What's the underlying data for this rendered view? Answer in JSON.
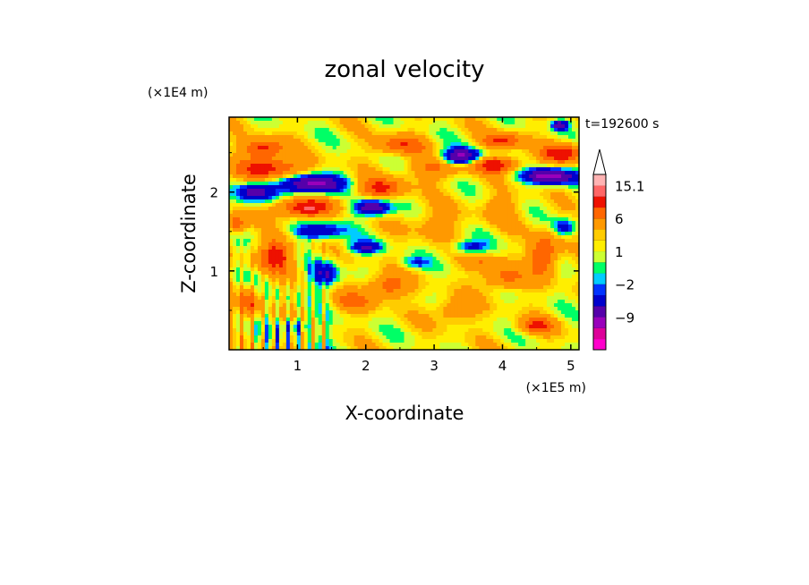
{
  "chart_data": {
    "type": "heatmap",
    "title": "zonal velocity",
    "xlabel": "X-coordinate",
    "ylabel": "Z-coordinate",
    "x_unit": "(×1E5 m)",
    "y_unit": "(×1E4 m)",
    "time_label": "t=192600 s",
    "x_range": [
      0.0,
      5.12
    ],
    "y_range": [
      0.0,
      2.95
    ],
    "x_ticks": [
      1,
      2,
      3,
      4,
      5
    ],
    "x_tick_labels": [
      "1",
      "2",
      "3",
      "4",
      "5"
    ],
    "y_ticks": [
      1,
      2
    ],
    "y_tick_labels": [
      "1",
      "2"
    ],
    "colorbar": {
      "levels": [
        -15,
        -12,
        -9,
        -6,
        -3,
        -2,
        -1,
        0,
        1,
        2,
        3,
        6,
        9,
        12,
        15.1
      ],
      "colors": [
        "#ff00cc",
        "#dd0099",
        "#9900bb",
        "#5500aa",
        "#0000cc",
        "#0033ff",
        "#00ccff",
        "#00ff66",
        "#ccff33",
        "#ffee00",
        "#ffcc00",
        "#ff9900",
        "#ff6600",
        "#ee1100",
        "#ff6666",
        "#ffb3b3"
      ],
      "labels": [
        {
          "value": 15.1,
          "text": "15.1"
        },
        {
          "value": 6,
          "text": "6"
        },
        {
          "value": 1,
          "text": "1"
        },
        {
          "value": -2,
          "text": "−2"
        },
        {
          "value": -9,
          "text": "−9"
        }
      ],
      "top_extension": "white triangle",
      "orientation": "vertical",
      "placement": "right"
    },
    "features": [
      {
        "x": 0.6,
        "z": 2.3,
        "amp": 10,
        "sx": 0.45,
        "sz": 0.13
      },
      {
        "x": 1.2,
        "z": 2.1,
        "amp": -12,
        "sx": 0.45,
        "sz": 0.12
      },
      {
        "x": 0.4,
        "z": 2.0,
        "amp": -10,
        "sx": 0.25,
        "sz": 0.12
      },
      {
        "x": 0.5,
        "z": 2.55,
        "amp": 9,
        "sx": 0.3,
        "sz": 0.12
      },
      {
        "x": 1.1,
        "z": 1.8,
        "amp": 11,
        "sx": 0.4,
        "sz": 0.12
      },
      {
        "x": 1.3,
        "z": 1.5,
        "amp": -8,
        "sx": 0.35,
        "sz": 0.1
      },
      {
        "x": 0.7,
        "z": 1.2,
        "amp": 9,
        "sx": 0.25,
        "sz": 0.2
      },
      {
        "x": 1.4,
        "z": 0.95,
        "amp": -7,
        "sx": 0.2,
        "sz": 0.15
      },
      {
        "x": 2.1,
        "z": 1.8,
        "amp": -11,
        "sx": 0.25,
        "sz": 0.1
      },
      {
        "x": 2.2,
        "z": 2.05,
        "amp": 8,
        "sx": 0.35,
        "sz": 0.12
      },
      {
        "x": 2.0,
        "z": 1.3,
        "amp": -7,
        "sx": 0.25,
        "sz": 0.08
      },
      {
        "x": 2.3,
        "z": 0.8,
        "amp": 7,
        "sx": 0.3,
        "sz": 0.15
      },
      {
        "x": 2.5,
        "z": 2.6,
        "amp": 7,
        "sx": 0.35,
        "sz": 0.12
      },
      {
        "x": 3.0,
        "z": 2.3,
        "amp": 5,
        "sx": 0.4,
        "sz": 0.15
      },
      {
        "x": 3.4,
        "z": 2.45,
        "amp": -12,
        "sx": 0.3,
        "sz": 0.1
      },
      {
        "x": 3.5,
        "z": 1.3,
        "amp": -6,
        "sx": 0.25,
        "sz": 0.08
      },
      {
        "x": 3.9,
        "z": 2.35,
        "amp": 10,
        "sx": 0.35,
        "sz": 0.1
      },
      {
        "x": 4.0,
        "z": 2.65,
        "amp": 8,
        "sx": 0.3,
        "sz": 0.1
      },
      {
        "x": 4.7,
        "z": 2.2,
        "amp": -12,
        "sx": 0.4,
        "sz": 0.1
      },
      {
        "x": 4.9,
        "z": 2.5,
        "amp": 10,
        "sx": 0.3,
        "sz": 0.12
      },
      {
        "x": 4.6,
        "z": 1.2,
        "amp": 9,
        "sx": 0.2,
        "sz": 0.25
      },
      {
        "x": 4.0,
        "z": 0.9,
        "amp": 6,
        "sx": 0.3,
        "sz": 0.15
      },
      {
        "x": 4.0,
        "z": 1.8,
        "amp": 3,
        "sx": 0.3,
        "sz": 0.2
      },
      {
        "x": 3.0,
        "z": 1.6,
        "amp": 3,
        "sx": 0.4,
        "sz": 0.2
      },
      {
        "x": 3.3,
        "z": 0.5,
        "amp": 5,
        "sx": 0.3,
        "sz": 0.15
      },
      {
        "x": 1.8,
        "z": 0.6,
        "amp": 5,
        "sx": 0.3,
        "sz": 0.12
      },
      {
        "x": 4.5,
        "z": 0.3,
        "amp": 8,
        "sx": 0.25,
        "sz": 0.1
      },
      {
        "x": 4.9,
        "z": 1.55,
        "amp": -6,
        "sx": 0.15,
        "sz": 0.1
      },
      {
        "x": 4.85,
        "z": 2.85,
        "amp": -10,
        "sx": 0.12,
        "sz": 0.06
      },
      {
        "x": 0.1,
        "z": 1.6,
        "amp": 7,
        "sx": 0.15,
        "sz": 0.12
      },
      {
        "x": 0.3,
        "z": 0.6,
        "amp": 6,
        "sx": 0.15,
        "sz": 0.2
      },
      {
        "x": 1.0,
        "z": 0.3,
        "amp": -5,
        "sx": 0.2,
        "sz": 0.1
      },
      {
        "x": 3.7,
        "z": 1.1,
        "amp": 4,
        "sx": 0.3,
        "sz": 0.1
      },
      {
        "x": 2.7,
        "z": 1.1,
        "amp": -4,
        "sx": 0.2,
        "sz": 0.08
      }
    ]
  }
}
